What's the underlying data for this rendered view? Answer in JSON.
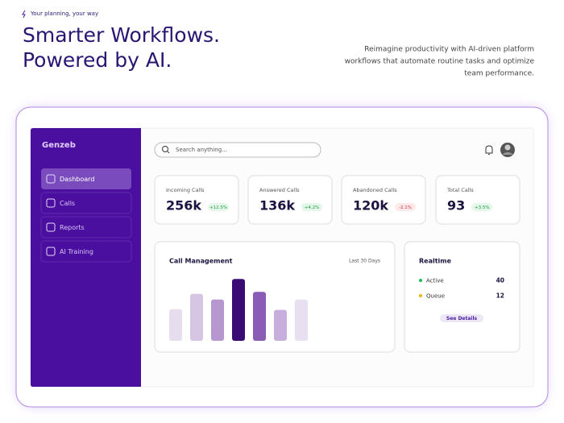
{
  "header": {
    "tagline": "Your planning, your way",
    "title_lines": [
      "Smarter Workflows.",
      "Powered by AI."
    ],
    "description_lines": [
      "Reimagine productivity with AI-driven platform",
      "workflows that automate routine tasks and optimize",
      "team performance."
    ]
  },
  "sidebar": {
    "logo": "Genzeb",
    "nav": [
      "Dashboard",
      "Calls",
      "Reports",
      "AI Training"
    ]
  },
  "search": {
    "placeholder": "Search anything..."
  },
  "stats": [
    {
      "label": "Incoming Calls",
      "value": "256k",
      "change": "+12.5%"
    },
    {
      "label": "Answered Calls",
      "value": "136k",
      "change": "+4.2%"
    },
    {
      "label": "Abandoned Calls",
      "value": "120k",
      "change": "-2.1%"
    },
    {
      "label": "Total Calls",
      "value": "93",
      "change": "+3.5%"
    }
  ],
  "call_management": {
    "title": "Call Management",
    "period": "Last 30 Days",
    "chart_data": {
      "type": "bar",
      "values": [
        49,
        73,
        64,
        96,
        76,
        48,
        64
      ],
      "colors": [
        "#e6ddef",
        "#d6c6e4",
        "#b697cf",
        "#3a0a75",
        "#8a5cb6",
        "#c8aedd",
        "#e8dff1"
      ]
    }
  },
  "realtime": {
    "title": "Realtime",
    "items": [
      {
        "label": "Active",
        "value": 40
      },
      {
        "label": "Queue",
        "value": 12
      }
    ],
    "button": "See Details"
  }
}
